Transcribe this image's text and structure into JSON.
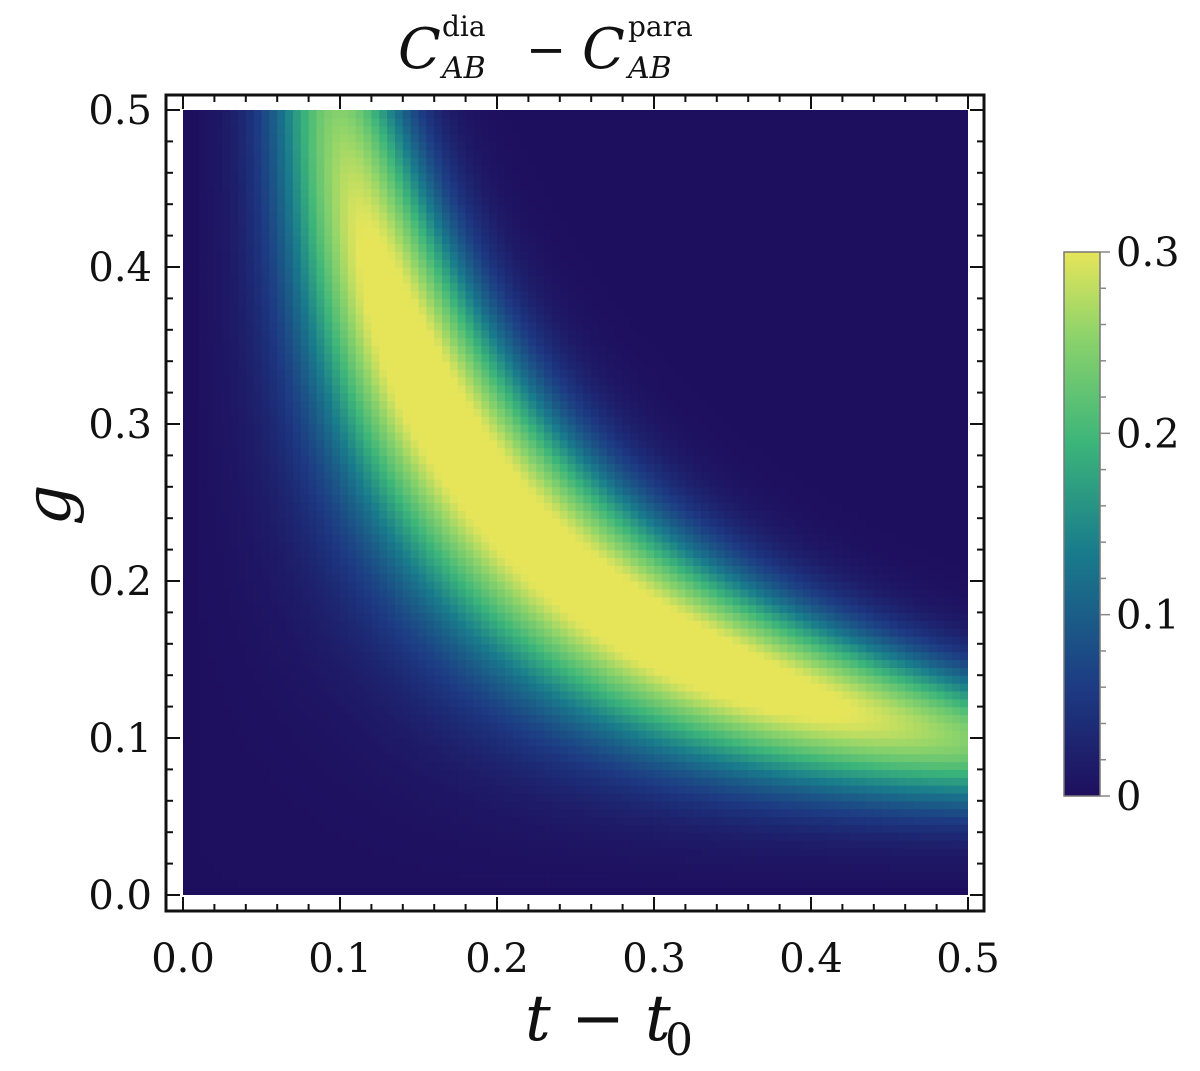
{
  "chart_data": {
    "type": "heatmap",
    "title": {
      "symbol": "C",
      "sup1": "dia",
      "sub1": "AB",
      "operator": "−",
      "sup2": "para",
      "sub2": "AB"
    },
    "xlabel": {
      "main": "t − t",
      "sub": "0"
    },
    "ylabel": "g",
    "xlim": [
      0.0,
      0.5
    ],
    "ylim": [
      0.0,
      0.5
    ],
    "xticks": [
      "0.0",
      "0.1",
      "0.2",
      "0.3",
      "0.4",
      "0.5"
    ],
    "yticks": [
      "0.0",
      "0.1",
      "0.2",
      "0.3",
      "0.4",
      "0.5"
    ],
    "colorbar": {
      "range": [
        0,
        0.3
      ],
      "ticks": [
        "0",
        "0.1",
        "0.2",
        "0.3"
      ],
      "colormap": "viridis-like",
      "colors": [
        "#1e0f5e",
        "#1d3b83",
        "#197c8c",
        "#3cb57a",
        "#8fd46a",
        "#e6e55a"
      ]
    },
    "description_of_field": {
      "ridge_points_approx": [
        {
          "t": 0.1,
          "g": 0.5
        },
        {
          "t": 0.15,
          "g": 0.4
        },
        {
          "t": 0.22,
          "g": 0.28
        },
        {
          "t": 0.3,
          "g": 0.2
        },
        {
          "t": 0.4,
          "g": 0.14
        },
        {
          "t": 0.5,
          "g": 0.1
        }
      ],
      "peak_value": 0.3,
      "peak_location": {
        "t": 0.3,
        "g": 0.18
      }
    }
  }
}
